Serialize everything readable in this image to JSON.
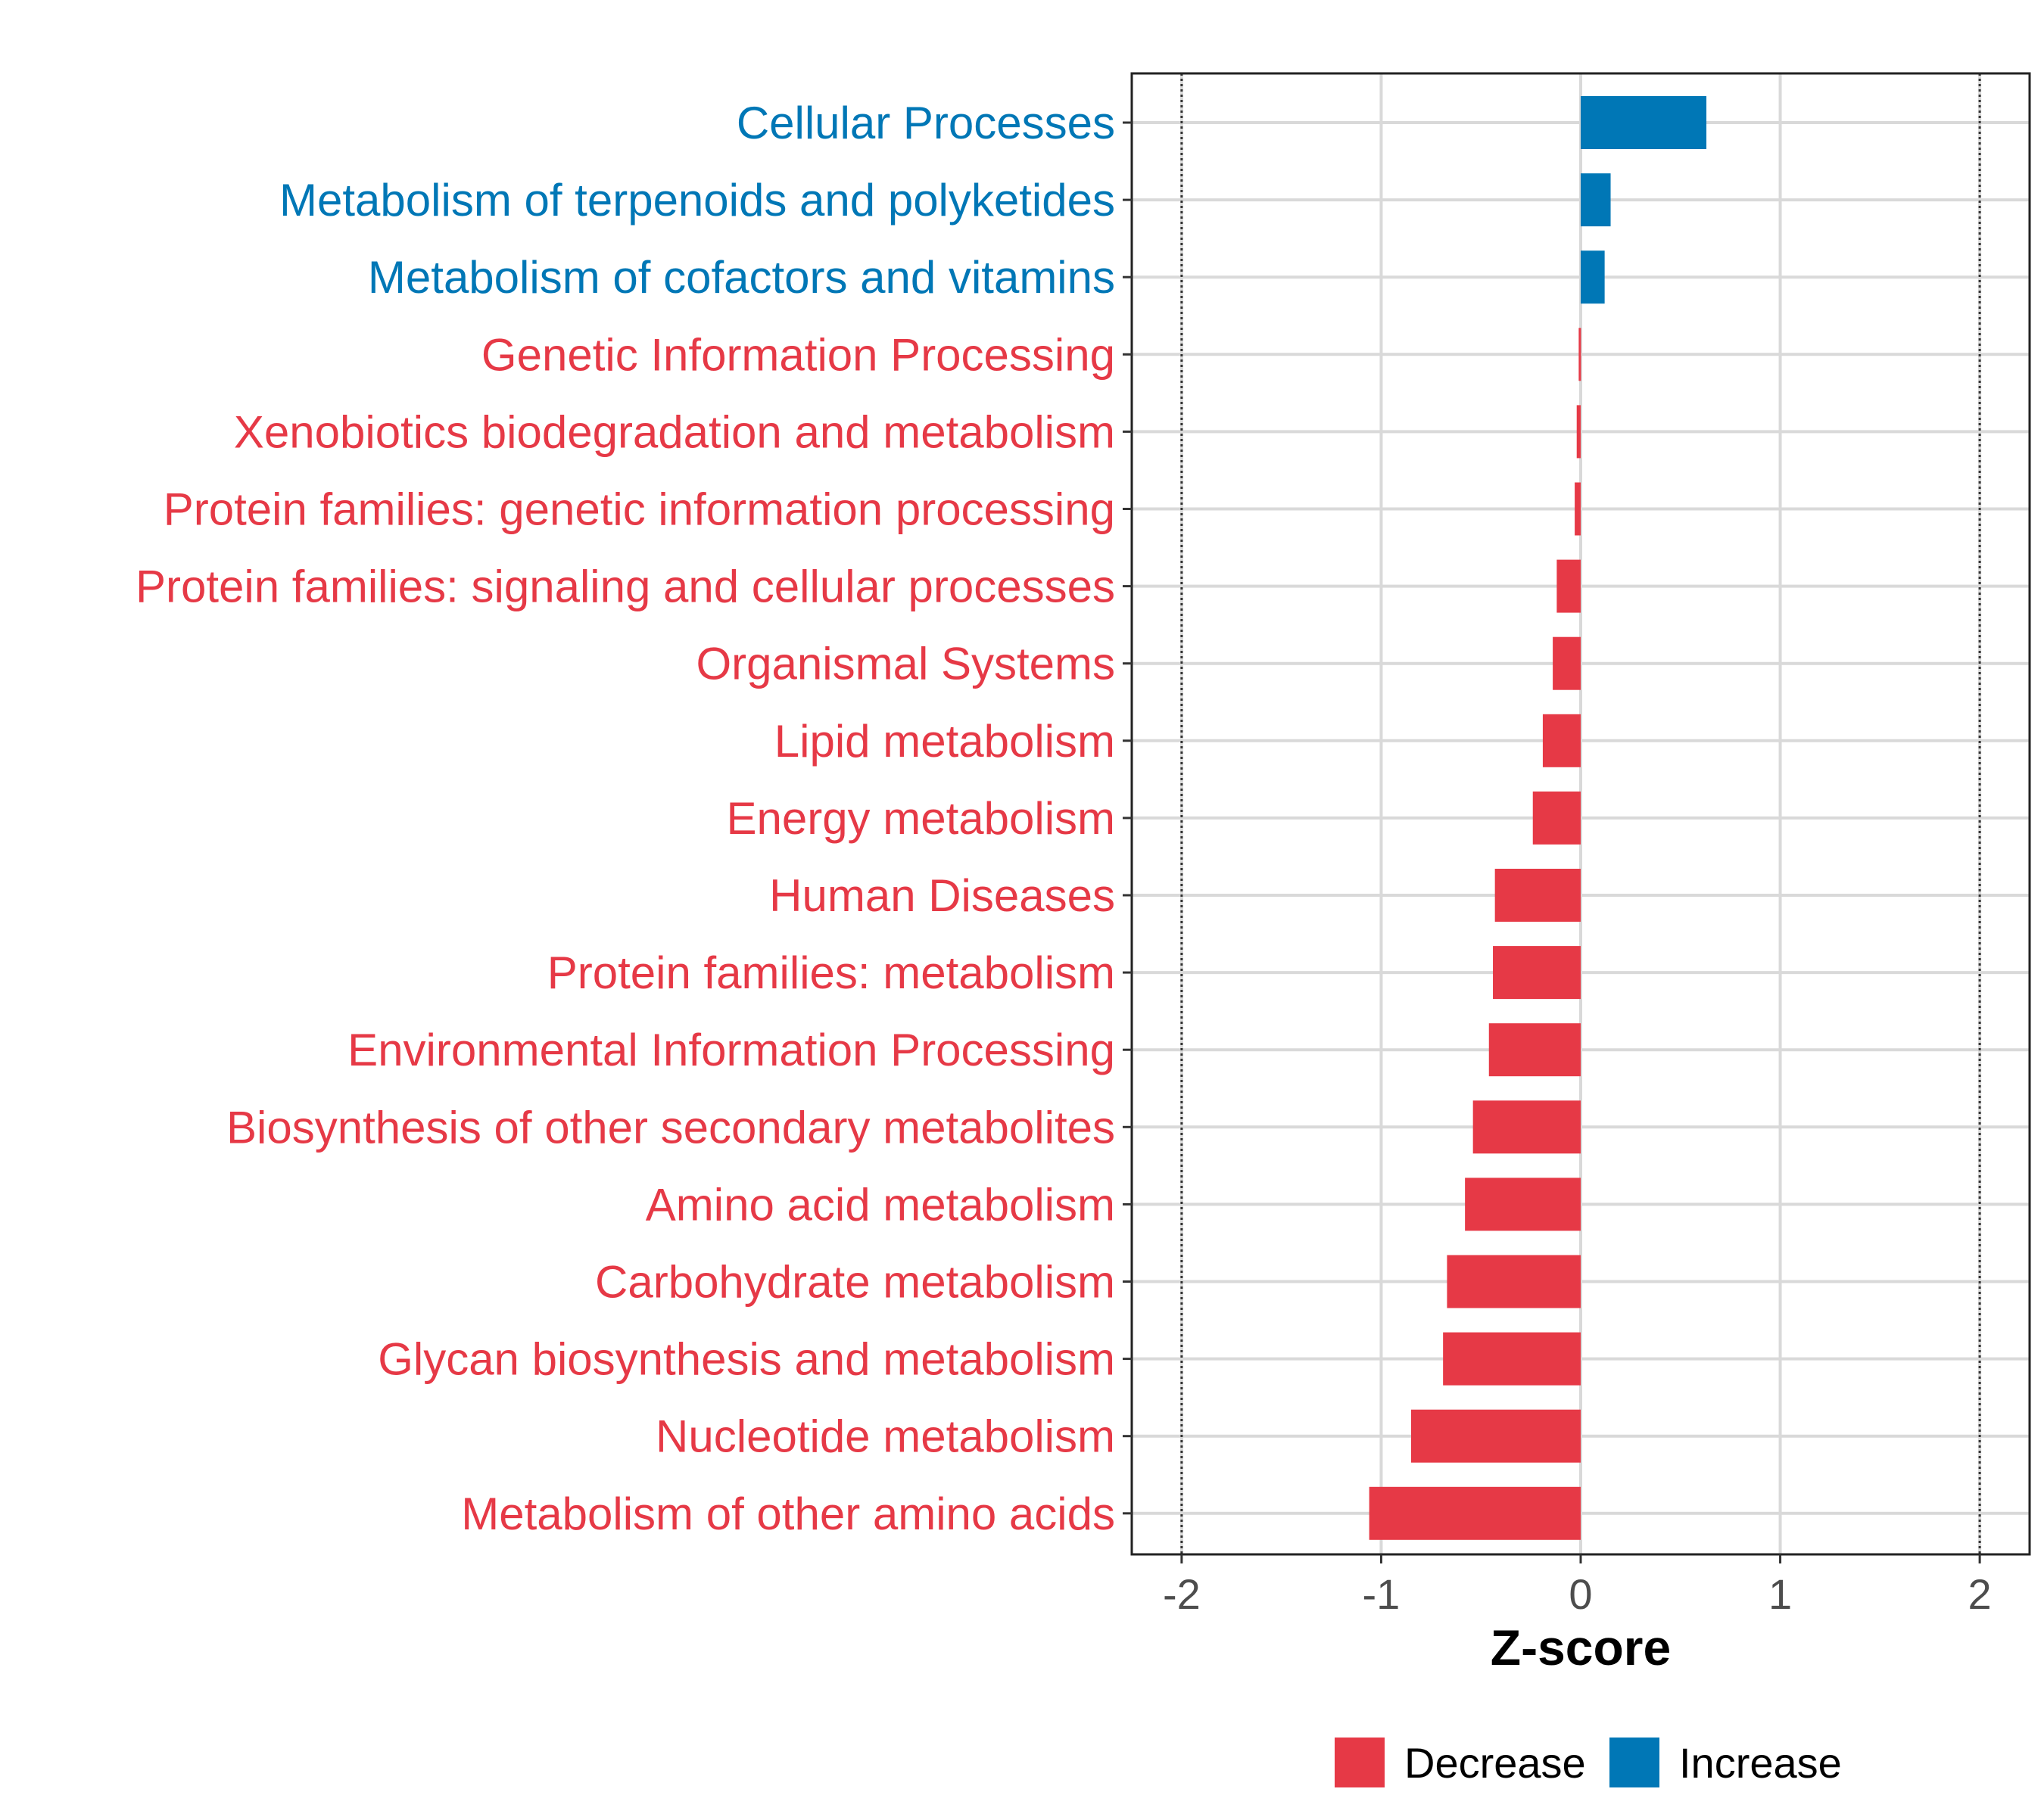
{
  "chart_data": {
    "type": "bar",
    "orientation": "horizontal",
    "xlabel": "Z-score",
    "ylabel": "",
    "xlim": [
      -2.25,
      2.25
    ],
    "xticks": [
      "-2",
      "-1",
      "0",
      "1",
      "2"
    ],
    "xtick_values": [
      -2,
      -1,
      0,
      1,
      2
    ],
    "reference_lines": [
      -2,
      2
    ],
    "grid": true,
    "legend_position": "bottom",
    "categories": [
      "Cellular Processes",
      "Metabolism of terpenoids and polyketides",
      "Metabolism of cofactors and vitamins",
      "Genetic Information Processing",
      "Xenobiotics biodegradation and metabolism",
      "Protein families: genetic information processing",
      "Protein families: signaling and cellular processes",
      "Organismal Systems",
      "Lipid metabolism",
      "Energy metabolism",
      "Human Diseases",
      "Protein families: metabolism",
      "Environmental Information Processing",
      "Biosynthesis of other secondary metabolites",
      "Amino acid metabolism",
      "Carbohydrate metabolism",
      "Glycan biosynthesis and metabolism",
      "Nucleotide metabolism",
      "Metabolism of other amino acids"
    ],
    "values": [
      0.63,
      0.15,
      0.12,
      -0.01,
      -0.02,
      -0.03,
      -0.12,
      -0.14,
      -0.19,
      -0.24,
      -0.43,
      -0.44,
      -0.46,
      -0.54,
      -0.58,
      -0.67,
      -0.69,
      -0.85,
      -1.06
    ],
    "groups": [
      "Increase",
      "Increase",
      "Increase",
      "Decrease",
      "Decrease",
      "Decrease",
      "Decrease",
      "Decrease",
      "Decrease",
      "Decrease",
      "Decrease",
      "Decrease",
      "Decrease",
      "Decrease",
      "Decrease",
      "Decrease",
      "Decrease",
      "Decrease",
      "Decrease"
    ],
    "legend": [
      {
        "name": "Decrease",
        "color": "#e63946"
      },
      {
        "name": "Increase",
        "color": "#0077b6"
      }
    ]
  }
}
